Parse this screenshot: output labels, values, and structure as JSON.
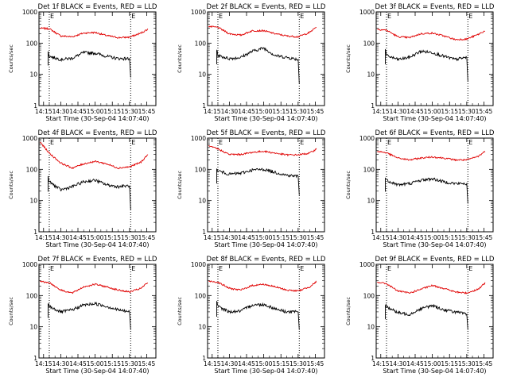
{
  "chart_data": {
    "type": "line",
    "layout": "3x3 grid of panels",
    "y_scale": "log",
    "ylim": [
      1,
      1000
    ],
    "y_ticks": [
      1,
      10,
      100,
      1000
    ],
    "y_tick_labels": [
      "1",
      "10",
      "100",
      "1000"
    ],
    "x_ticks": [
      "14:15",
      "14:30",
      "14:45",
      "15:00",
      "15:15",
      "15:30",
      "15:45"
    ],
    "xlim_minutes_from_start": [
      -4,
      98
    ],
    "ylabel": "Counts/sec",
    "xlabel": "Start Time (30-Sep-04 14:07:40)",
    "series_colors": {
      "events": "#000000",
      "lld": "#e00000"
    },
    "vline_markers": [
      {
        "label": "E",
        "time": "14:20"
      },
      {
        "label": "E",
        "time": "15:31"
      }
    ],
    "grid": false,
    "panels": [
      {
        "title": "Det 1f BLACK = Events, RED = LLD",
        "lld": {
          "x": [
            "14:12",
            "14:20",
            "14:30",
            "14:40",
            "14:50",
            "15:00",
            "15:10",
            "15:20",
            "15:30",
            "15:40",
            "15:46"
          ],
          "y": [
            300,
            290,
            170,
            160,
            210,
            220,
            175,
            150,
            155,
            210,
            280
          ]
        },
        "events": {
          "x": [
            "14:19",
            "14:20",
            "14:30",
            "14:40",
            "14:50",
            "15:00",
            "15:10",
            "15:20",
            "15:30",
            "15:31"
          ],
          "y": [
            55,
            38,
            30,
            33,
            50,
            48,
            38,
            32,
            32,
            8
          ]
        }
      },
      {
        "title": "Det 2f BLACK = Events, RED = LLD",
        "lld": {
          "x": [
            "14:12",
            "14:20",
            "14:30",
            "14:40",
            "14:50",
            "15:00",
            "15:10",
            "15:20",
            "15:30",
            "15:40",
            "15:46"
          ],
          "y": [
            340,
            320,
            200,
            180,
            250,
            250,
            200,
            170,
            160,
            220,
            330
          ]
        },
        "events": {
          "x": [
            "14:19",
            "14:20",
            "14:30",
            "14:40",
            "14:50",
            "15:00",
            "15:10",
            "15:20",
            "15:30",
            "15:31"
          ],
          "y": [
            60,
            40,
            32,
            35,
            55,
            70,
            40,
            35,
            30,
            5
          ]
        }
      },
      {
        "title": "Det 3f BLACK = Events, RED = LLD",
        "lld": {
          "x": [
            "14:12",
            "14:20",
            "14:30",
            "14:40",
            "14:50",
            "15:00",
            "15:10",
            "15:20",
            "15:30",
            "15:40",
            "15:46"
          ],
          "y": [
            280,
            260,
            160,
            150,
            200,
            210,
            170,
            130,
            135,
            190,
            250
          ]
        },
        "events": {
          "x": [
            "14:19",
            "14:20",
            "14:30",
            "14:40",
            "14:50",
            "15:00",
            "15:10",
            "15:20",
            "15:30",
            "15:31"
          ],
          "y": [
            60,
            40,
            30,
            35,
            55,
            50,
            38,
            30,
            35,
            6
          ]
        }
      },
      {
        "title": "Det 4f BLACK = Events, RED = LLD",
        "lld": {
          "x": [
            "14:12",
            "14:20",
            "14:30",
            "14:40",
            "14:50",
            "15:00",
            "15:10",
            "15:20",
            "15:30",
            "15:40",
            "15:46"
          ],
          "y": [
            750,
            330,
            160,
            110,
            150,
            180,
            150,
            110,
            120,
            170,
            300
          ]
        },
        "events": {
          "x": [
            "14:19",
            "14:20",
            "14:30",
            "14:40",
            "14:50",
            "15:00",
            "15:10",
            "15:20",
            "15:30",
            "15:31"
          ],
          "y": [
            55,
            40,
            22,
            28,
            40,
            45,
            32,
            28,
            30,
            5
          ]
        }
      },
      {
        "title": "Det 5f BLACK = Events, RED = LLD",
        "lld": {
          "x": [
            "14:12",
            "14:20",
            "14:30",
            "14:40",
            "14:50",
            "15:00",
            "15:10",
            "15:20",
            "15:30",
            "15:40",
            "15:46"
          ],
          "y": [
            550,
            450,
            300,
            300,
            350,
            380,
            330,
            290,
            290,
            330,
            450
          ]
        },
        "events": {
          "x": [
            "14:19",
            "14:20",
            "14:30",
            "14:40",
            "14:50",
            "15:00",
            "15:10",
            "15:20",
            "15:30",
            "15:31"
          ],
          "y": [
            100,
            90,
            70,
            75,
            95,
            100,
            80,
            65,
            60,
            15
          ]
        }
      },
      {
        "title": "Det 6f BLACK = Events, RED = LLD",
        "lld": {
          "x": [
            "14:12",
            "14:20",
            "14:30",
            "14:40",
            "14:50",
            "15:00",
            "15:10",
            "15:20",
            "15:30",
            "15:40",
            "15:46"
          ],
          "y": [
            380,
            340,
            230,
            200,
            230,
            250,
            230,
            200,
            200,
            260,
            380
          ]
        },
        "events": {
          "x": [
            "14:19",
            "14:20",
            "14:30",
            "14:40",
            "14:50",
            "15:00",
            "15:10",
            "15:20",
            "15:30",
            "15:31"
          ],
          "y": [
            55,
            45,
            32,
            35,
            45,
            50,
            40,
            35,
            35,
            8
          ]
        }
      },
      {
        "title": "Det 7f BLACK = Events, RED = LLD",
        "lld": {
          "x": [
            "14:12",
            "14:20",
            "14:30",
            "14:40",
            "14:50",
            "15:00",
            "15:10",
            "15:20",
            "15:30",
            "15:40",
            "15:46"
          ],
          "y": [
            280,
            260,
            150,
            120,
            190,
            230,
            190,
            150,
            130,
            170,
            260
          ]
        },
        "events": {
          "x": [
            "14:19",
            "14:20",
            "14:30",
            "14:40",
            "14:50",
            "15:00",
            "15:10",
            "15:20",
            "15:30",
            "15:31"
          ],
          "y": [
            55,
            45,
            30,
            35,
            50,
            55,
            45,
            35,
            30,
            8
          ]
        }
      },
      {
        "title": "Det 8f BLACK = Events, RED = LLD",
        "lld": {
          "x": [
            "14:12",
            "14:20",
            "14:30",
            "14:40",
            "14:50",
            "15:00",
            "15:10",
            "15:20",
            "15:30",
            "15:40",
            "15:46"
          ],
          "y": [
            290,
            270,
            170,
            150,
            210,
            230,
            190,
            150,
            140,
            190,
            280
          ]
        },
        "events": {
          "x": [
            "14:19",
            "14:20",
            "14:30",
            "14:40",
            "14:50",
            "15:00",
            "15:10",
            "15:20",
            "15:30",
            "15:31"
          ],
          "y": [
            60,
            45,
            30,
            32,
            50,
            52,
            38,
            30,
            30,
            8
          ]
        }
      },
      {
        "title": "Det 9f BLACK = Events, RED = LLD",
        "lld": {
          "x": [
            "14:12",
            "14:20",
            "14:30",
            "14:40",
            "14:50",
            "15:00",
            "15:10",
            "15:20",
            "15:30",
            "15:40",
            "15:46"
          ],
          "y": [
            270,
            240,
            140,
            120,
            160,
            210,
            170,
            130,
            120,
            160,
            250
          ]
        },
        "events": {
          "x": [
            "14:19",
            "14:20",
            "14:30",
            "14:40",
            "14:50",
            "15:00",
            "15:10",
            "15:20",
            "15:30",
            "15:31"
          ],
          "y": [
            50,
            45,
            28,
            25,
            38,
            48,
            35,
            30,
            25,
            8
          ]
        }
      }
    ]
  }
}
